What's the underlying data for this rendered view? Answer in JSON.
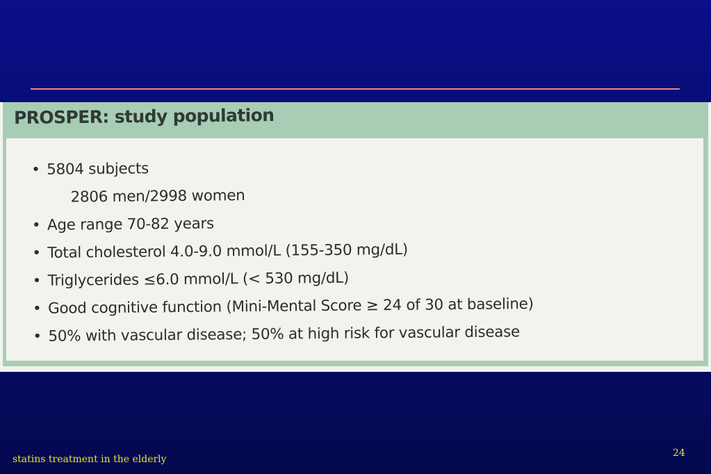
{
  "slide": {
    "footer_text": "statins treatment in the elderly",
    "page_number": "24"
  },
  "panel": {
    "title": "PROSPER: study population",
    "bullets": [
      {
        "text": "5804 subjects",
        "bullet": "•"
      },
      {
        "text": "2806 men/2998 women",
        "bullet": ""
      },
      {
        "text": "Age range 70-82 years",
        "bullet": "•"
      },
      {
        "text": "Total cholesterol 4.0-9.0 mmol/L (155-350 mg/dL)",
        "bullet": "•"
      },
      {
        "text": "Triglycerides ≤6.0 mmol/L (< 530 mg/dL)",
        "bullet": "•"
      },
      {
        "text": "Good cognitive function (Mini-Mental Score ≥ 24 of 30 at baseline)",
        "bullet": "•"
      },
      {
        "text": "50% with vascular disease; 50% at high risk for vascular disease",
        "bullet": "•"
      }
    ]
  },
  "colors": {
    "background": "#060a5c",
    "rule": "#e58a78",
    "header_green": "#a8cdb4",
    "footer_text": "#e8e22a"
  }
}
